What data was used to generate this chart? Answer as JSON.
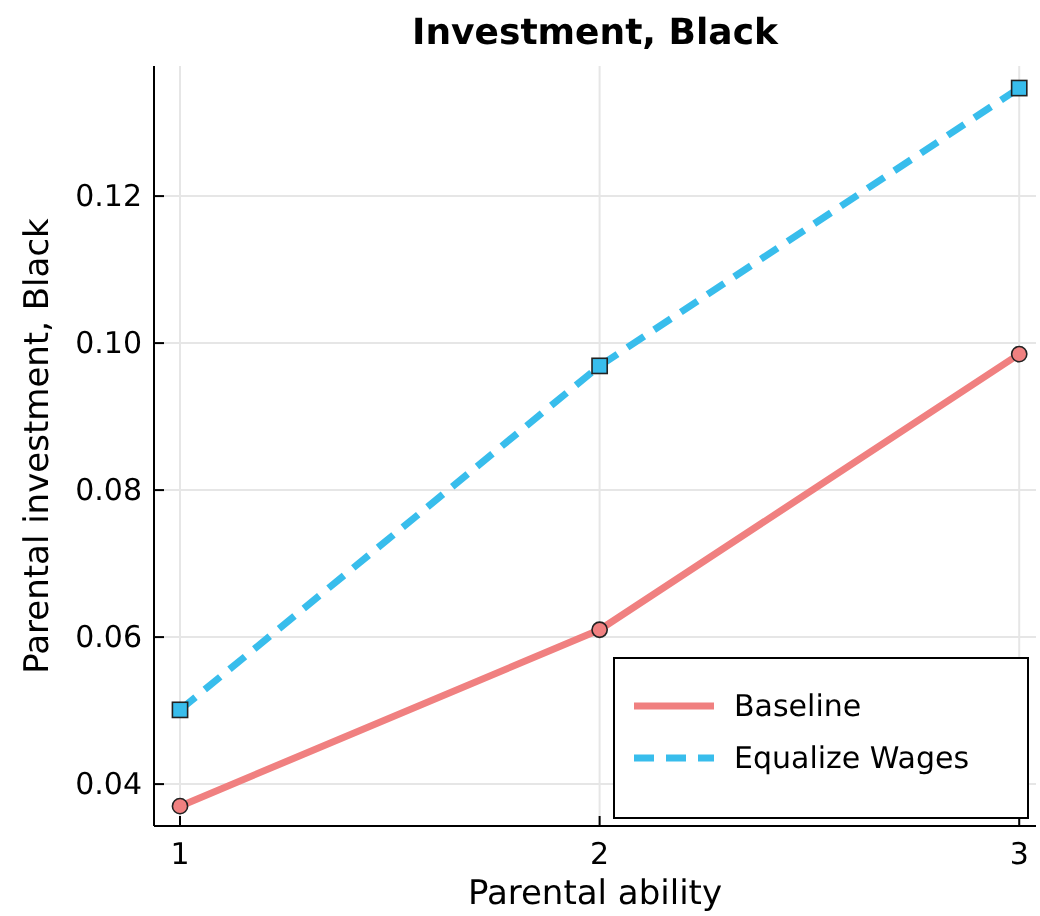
{
  "chart_data": {
    "type": "line",
    "title": "Investment, Black",
    "xlabel": "Parental ability",
    "ylabel": "Parental investment, Black",
    "x": [
      1,
      2,
      3
    ],
    "series": [
      {
        "name": "Baseline",
        "color": "#f08080",
        "values": [
          0.037,
          0.061,
          0.0985
        ],
        "marker": "circle",
        "line_style": "solid"
      },
      {
        "name": "Equalize Wages",
        "color": "#38bdec",
        "values": [
          0.0501,
          0.0969,
          0.1347
        ],
        "marker": "square",
        "line_style": "dashed"
      }
    ],
    "xlim": [
      0.938,
      3.04
    ],
    "xticks": [
      1,
      2,
      3
    ],
    "ylim": [
      0.0343,
      0.1377
    ],
    "yticks": [
      {
        "value": 0.04,
        "label": "0.04"
      },
      {
        "value": 0.06,
        "label": "0.06"
      },
      {
        "value": 0.08,
        "label": "0.08"
      },
      {
        "value": 0.1,
        "label": "0.10"
      },
      {
        "value": 0.12,
        "label": "0.12"
      }
    ],
    "grid": true,
    "legend": "bottom right"
  }
}
